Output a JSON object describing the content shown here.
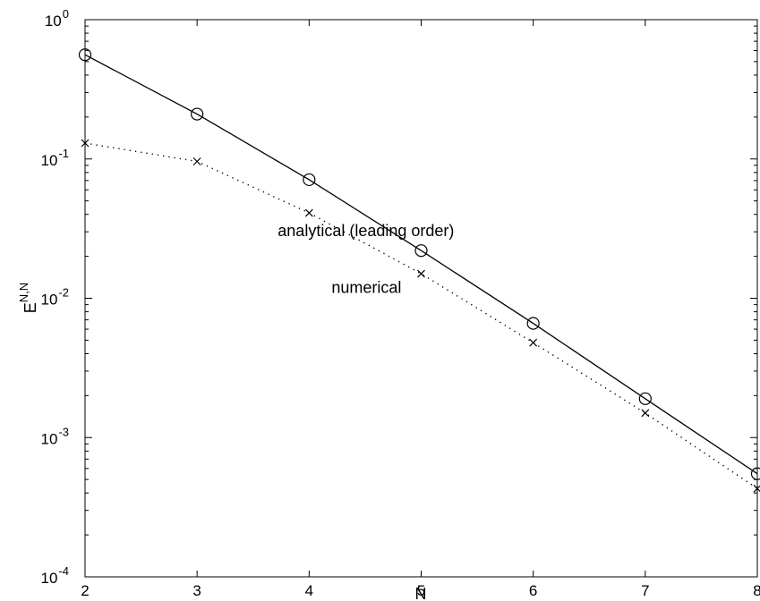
{
  "chart_data": {
    "type": "line",
    "xlabel": "N",
    "ylabel": "E",
    "ylabel_sup": "N,N",
    "xlim": [
      2,
      8
    ],
    "ylim": [
      0.0001,
      1
    ],
    "yscale": "log",
    "grid": false,
    "x_ticks": [
      2,
      3,
      4,
      5,
      6,
      7,
      8
    ],
    "y_ticks": [
      {
        "value": 1,
        "base": "10",
        "exp": "0"
      },
      {
        "value": 0.1,
        "base": "10",
        "exp": "-1"
      },
      {
        "value": 0.01,
        "base": "10",
        "exp": "-2"
      },
      {
        "value": 0.001,
        "base": "10",
        "exp": "-3"
      },
      {
        "value": 0.0001,
        "base": "10",
        "exp": "-4"
      }
    ],
    "series": [
      {
        "name": "analytical (leading order)",
        "line": "solid",
        "marker": "circle",
        "color": "#000000",
        "x": [
          2,
          3,
          4,
          5,
          6,
          7,
          8
        ],
        "y": [
          0.56,
          0.21,
          0.071,
          0.022,
          0.0066,
          0.0019,
          0.00055
        ]
      },
      {
        "name": "numerical",
        "line": "dotted",
        "marker": "x",
        "color": "#000000",
        "x": [
          2,
          3,
          4,
          5,
          6,
          7,
          8
        ],
        "y": [
          0.13,
          0.096,
          0.041,
          0.015,
          0.0048,
          0.0015,
          0.00043
        ]
      }
    ],
    "annotations": [
      {
        "text": "analytical (leading order)",
        "x": 3.72,
        "y": 0.028
      },
      {
        "text": "numerical",
        "x": 4.2,
        "y": 0.0109
      }
    ]
  }
}
